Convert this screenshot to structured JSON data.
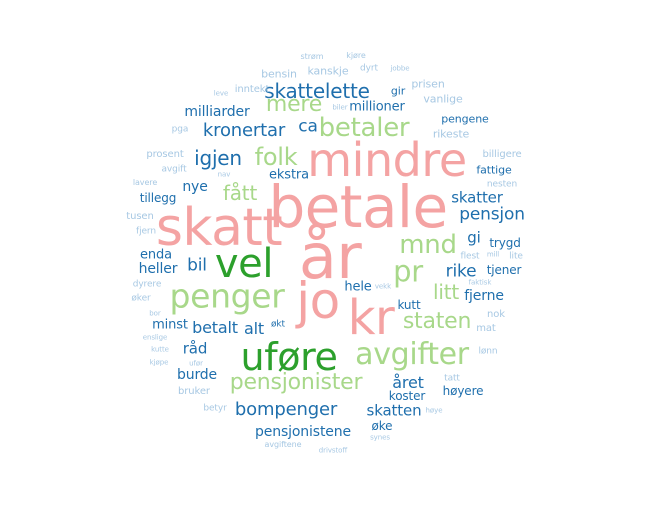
{
  "palette": {
    "pink": "#f4a3a3",
    "dark_green": "#2ca02c",
    "light_green": "#a8d88a",
    "blue": "#1f6fad",
    "light_blue": "#a7c8e3"
  },
  "words": [
    {
      "text": "år"
    },
    {
      "text": "betale"
    },
    {
      "text": "mindre"
    },
    {
      "text": "skatt"
    },
    {
      "text": "jo"
    },
    {
      "text": "kr"
    },
    {
      "text": "vel"
    },
    {
      "text": "uføre"
    },
    {
      "text": "penger"
    },
    {
      "text": "avgifter"
    },
    {
      "text": "pr"
    },
    {
      "text": "mnd"
    },
    {
      "text": "betaler"
    },
    {
      "text": "folk"
    },
    {
      "text": "mere"
    },
    {
      "text": "fått"
    },
    {
      "text": "pensjonister"
    },
    {
      "text": "staten"
    },
    {
      "text": "litt"
    },
    {
      "text": "skattelette"
    },
    {
      "text": "igjen"
    },
    {
      "text": "kronertar"
    },
    {
      "text": "ca"
    },
    {
      "text": "bompenger"
    },
    {
      "text": "bil"
    },
    {
      "text": "pensjon"
    },
    {
      "text": "rike"
    },
    {
      "text": "betalt"
    },
    {
      "text": "alt"
    },
    {
      "text": "året"
    },
    {
      "text": "skatter"
    },
    {
      "text": "skatten"
    },
    {
      "text": "pensjonistene"
    },
    {
      "text": "milliarder"
    },
    {
      "text": "millioner"
    },
    {
      "text": "nye"
    },
    {
      "text": "ekstra"
    },
    {
      "text": "heller"
    },
    {
      "text": "tillegg"
    },
    {
      "text": "enda"
    },
    {
      "text": "gi"
    },
    {
      "text": "minst"
    },
    {
      "text": "råd"
    },
    {
      "text": "burde"
    },
    {
      "text": "hele"
    },
    {
      "text": "kutt"
    },
    {
      "text": "fjerne"
    },
    {
      "text": "trygd"
    },
    {
      "text": "tjener"
    },
    {
      "text": "koster"
    },
    {
      "text": "høyere"
    },
    {
      "text": "øke"
    },
    {
      "text": "fattige"
    },
    {
      "text": "pengene"
    },
    {
      "text": "gir"
    },
    {
      "text": "bensin"
    },
    {
      "text": "kanskje"
    },
    {
      "text": "vanlige"
    },
    {
      "text": "rikeste"
    },
    {
      "text": "prisen"
    },
    {
      "text": "inntekt"
    },
    {
      "text": "dyrt"
    },
    {
      "text": "strøm"
    },
    {
      "text": "kjøre"
    },
    {
      "text": "jobbe"
    },
    {
      "text": "leve"
    },
    {
      "text": "biler"
    },
    {
      "text": "pga"
    },
    {
      "text": "prosent"
    },
    {
      "text": "avgift"
    },
    {
      "text": "nav"
    },
    {
      "text": "lavere"
    },
    {
      "text": "tusen"
    },
    {
      "text": "fjern"
    },
    {
      "text": "billigere"
    },
    {
      "text": "nesten"
    },
    {
      "text": "flest"
    },
    {
      "text": "mill"
    },
    {
      "text": "faktisk"
    },
    {
      "text": "lite"
    },
    {
      "text": "nok"
    },
    {
      "text": "mat"
    },
    {
      "text": "lønn"
    },
    {
      "text": "tatt"
    },
    {
      "text": "økt"
    },
    {
      "text": "dyrere"
    },
    {
      "text": "øker"
    },
    {
      "text": "bor"
    },
    {
      "text": "enslige"
    },
    {
      "text": "kutte"
    },
    {
      "text": "kjøpe"
    },
    {
      "text": "ufør"
    },
    {
      "text": "bruker"
    },
    {
      "text": "betyr"
    },
    {
      "text": "synes"
    },
    {
      "text": "avgiftene"
    },
    {
      "text": "drivstoff"
    },
    {
      "text": "høye"
    },
    {
      "text": "vekk"
    }
  ]
}
